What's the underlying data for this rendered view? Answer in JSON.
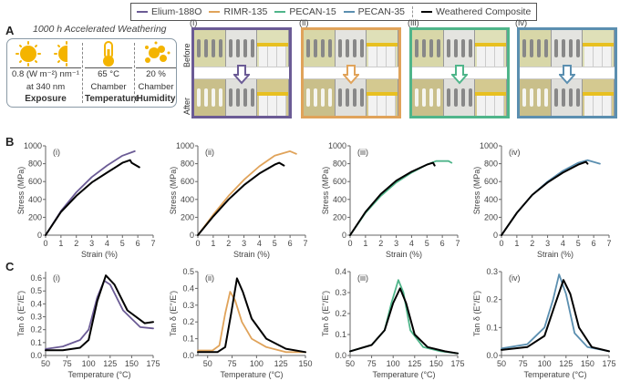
{
  "legend": {
    "items": [
      {
        "label": "Elium-188O",
        "color": "#6b5b95"
      },
      {
        "label": "RIMR-135",
        "color": "#e0a35a"
      },
      {
        "label": "PECAN-15",
        "color": "#4fb58a"
      },
      {
        "label": "PECAN-35",
        "color": "#5b8fb0"
      },
      {
        "label": "Weathered Composite",
        "color": "#000000"
      }
    ]
  },
  "panelA": {
    "letter": "A",
    "title": "1000 h Accelerated Weathering",
    "columns": [
      {
        "icon": "sun-icon",
        "value": "0.8 (W m⁻²) nm⁻¹",
        "sub": "at 340 nm",
        "caption": "Exposure"
      },
      {
        "icon": "thermometer-icon",
        "value": "65 °C",
        "sub": "Chamber",
        "caption": "Temperature"
      },
      {
        "icon": "humidity-droplets-icon",
        "value": "20 %",
        "sub": "Chamber",
        "caption": "Humidity"
      }
    ],
    "photos": [
      {
        "label": "(i)",
        "color": "#6b5b95"
      },
      {
        "label": "(ii)",
        "color": "#e0a35a"
      },
      {
        "label": "(iii)",
        "color": "#4fb58a"
      },
      {
        "label": "(iv)",
        "color": "#5b8fb0"
      }
    ],
    "row_labels": {
      "before": "Before",
      "after": "After"
    }
  },
  "panelB": {
    "letter": "B"
  },
  "panelC": {
    "letter": "C"
  },
  "chart_data": [
    {
      "type": "line",
      "panel": "B",
      "label": "(i)",
      "xlabel": "Strain (%)",
      "ylabel": "Stress (MPa)",
      "xlim": [
        0,
        7
      ],
      "ylim": [
        0,
        1000
      ],
      "xticks": [
        0,
        1,
        2,
        3,
        4,
        5,
        6,
        7
      ],
      "yticks": [
        0,
        200,
        400,
        600,
        800,
        1000
      ],
      "series": [
        {
          "name": "Elium-188O",
          "color": "#6b5b95",
          "x": [
            0,
            1,
            2,
            3,
            4,
            5,
            5.8
          ],
          "y": [
            0,
            270,
            480,
            650,
            780,
            890,
            940
          ]
        },
        {
          "name": "Weathered Composite",
          "color": "#000000",
          "x": [
            0,
            1,
            2,
            3,
            4,
            5,
            5.5,
            5.6,
            6.1
          ],
          "y": [
            0,
            260,
            440,
            590,
            700,
            810,
            840,
            810,
            760
          ]
        }
      ]
    },
    {
      "type": "line",
      "panel": "B",
      "label": "(ii)",
      "xlabel": "Strain (%)",
      "ylabel": "Stress (MPa)",
      "xlim": [
        0,
        7
      ],
      "ylim": [
        0,
        1000
      ],
      "xticks": [
        0,
        1,
        2,
        3,
        4,
        5,
        6,
        7
      ],
      "yticks": [
        0,
        200,
        400,
        600,
        800,
        1000
      ],
      "series": [
        {
          "name": "RIMR-135",
          "color": "#e0a35a",
          "x": [
            0,
            1,
            2,
            3,
            4,
            5,
            6,
            6.4
          ],
          "y": [
            0,
            230,
            440,
            620,
            770,
            890,
            940,
            910
          ]
        },
        {
          "name": "Weathered Composite",
          "color": "#000000",
          "x": [
            0,
            1,
            2,
            3,
            4,
            5,
            5.3,
            5.6
          ],
          "y": [
            0,
            210,
            400,
            560,
            690,
            790,
            810,
            780
          ]
        }
      ]
    },
    {
      "type": "line",
      "panel": "B",
      "label": "(iii)",
      "xlabel": "Strain (%)",
      "ylabel": "Stress (MPa)",
      "xlim": [
        0,
        7
      ],
      "ylim": [
        0,
        1000
      ],
      "xticks": [
        0,
        1,
        2,
        3,
        4,
        5,
        6,
        7
      ],
      "yticks": [
        0,
        200,
        400,
        600,
        800,
        1000
      ],
      "series": [
        {
          "name": "PECAN-15",
          "color": "#4fb58a",
          "x": [
            0,
            1,
            2,
            3,
            4,
            5,
            5.6,
            6.4,
            6.6
          ],
          "y": [
            0,
            250,
            440,
            590,
            700,
            790,
            830,
            830,
            810
          ]
        },
        {
          "name": "Weathered Composite",
          "color": "#000000",
          "x": [
            0,
            1,
            2,
            3,
            4,
            5,
            5.4,
            5.5
          ],
          "y": [
            0,
            260,
            460,
            610,
            710,
            790,
            810,
            780
          ]
        }
      ]
    },
    {
      "type": "line",
      "panel": "B",
      "label": "(iv)",
      "xlabel": "Strain (%)",
      "ylabel": "Stress (MPa)",
      "xlim": [
        0,
        7
      ],
      "ylim": [
        0,
        1000
      ],
      "xticks": [
        0,
        1,
        2,
        3,
        4,
        5,
        6,
        7
      ],
      "yticks": [
        0,
        200,
        400,
        600,
        800,
        1000
      ],
      "series": [
        {
          "name": "PECAN-35",
          "color": "#5b8fb0",
          "x": [
            0,
            1,
            2,
            3,
            4,
            5,
            5.6,
            6.4
          ],
          "y": [
            0,
            250,
            450,
            600,
            720,
            810,
            840,
            800
          ]
        },
        {
          "name": "Weathered Composite",
          "color": "#000000",
          "x": [
            0,
            1,
            2,
            3,
            4,
            5,
            5.5,
            5.6
          ],
          "y": [
            0,
            250,
            450,
            590,
            700,
            790,
            820,
            800
          ]
        }
      ]
    },
    {
      "type": "line",
      "panel": "C",
      "label": "(i)",
      "xlabel": "Temperature (°C)",
      "ylabel": "Tan δ (E''/E')",
      "xlim": [
        50,
        175
      ],
      "ylim": [
        0,
        0.65
      ],
      "xticks": [
        50,
        75,
        100,
        125,
        150,
        175
      ],
      "yticks": [
        0,
        0.1,
        0.2,
        0.3,
        0.4,
        0.5,
        0.6
      ],
      "series": [
        {
          "name": "Elium-188O",
          "color": "#6b5b95",
          "x": [
            50,
            70,
            90,
            100,
            110,
            118,
            125,
            140,
            160,
            175
          ],
          "y": [
            0.05,
            0.07,
            0.12,
            0.2,
            0.45,
            0.58,
            0.55,
            0.35,
            0.22,
            0.21
          ]
        },
        {
          "name": "Weathered Composite",
          "color": "#000000",
          "x": [
            50,
            70,
            90,
            100,
            110,
            120,
            130,
            145,
            165,
            175
          ],
          "y": [
            0.04,
            0.04,
            0.06,
            0.12,
            0.42,
            0.62,
            0.55,
            0.35,
            0.25,
            0.26
          ]
        }
      ]
    },
    {
      "type": "line",
      "panel": "C",
      "label": "(ii)",
      "xlabel": "Temperature (°C)",
      "ylabel": "Tan δ (E''/E')",
      "xlim": [
        40,
        150
      ],
      "ylim": [
        0,
        0.5
      ],
      "xticks": [
        50,
        75,
        100,
        125,
        150
      ],
      "yticks": [
        0,
        0.1,
        0.2,
        0.3,
        0.4,
        0.5
      ],
      "series": [
        {
          "name": "RIMR-135",
          "color": "#e0a35a",
          "x": [
            40,
            55,
            62,
            68,
            73,
            78,
            85,
            95,
            110,
            130,
            150
          ],
          "y": [
            0.03,
            0.03,
            0.06,
            0.25,
            0.38,
            0.33,
            0.2,
            0.1,
            0.05,
            0.02,
            0.02
          ]
        },
        {
          "name": "Weathered Composite",
          "color": "#000000",
          "x": [
            40,
            60,
            68,
            74,
            80,
            86,
            95,
            110,
            130,
            150
          ],
          "y": [
            0.02,
            0.02,
            0.05,
            0.25,
            0.46,
            0.38,
            0.22,
            0.1,
            0.04,
            0.02
          ]
        }
      ]
    },
    {
      "type": "line",
      "panel": "C",
      "label": "(iii)",
      "xlabel": "Temperature (°C)",
      "ylabel": "Tan δ (E''/E')",
      "xlim": [
        50,
        175
      ],
      "ylim": [
        0,
        0.4
      ],
      "xticks": [
        50,
        75,
        100,
        125,
        150,
        175
      ],
      "yticks": [
        0,
        0.1,
        0.2,
        0.3,
        0.4
      ],
      "series": [
        {
          "name": "PECAN-15",
          "color": "#4fb58a",
          "x": [
            50,
            75,
            90,
            98,
            106,
            112,
            120,
            135,
            155,
            175
          ],
          "y": [
            0.02,
            0.05,
            0.12,
            0.25,
            0.36,
            0.3,
            0.12,
            0.04,
            0.02,
            0.01
          ]
        },
        {
          "name": "Weathered Composite",
          "color": "#000000",
          "x": [
            50,
            75,
            90,
            100,
            108,
            115,
            125,
            140,
            160,
            175
          ],
          "y": [
            0.02,
            0.05,
            0.12,
            0.25,
            0.32,
            0.25,
            0.1,
            0.04,
            0.02,
            0.01
          ]
        }
      ]
    },
    {
      "type": "line",
      "panel": "C",
      "label": "(iv)",
      "xlabel": "Temperature (°C)",
      "ylabel": "Tan δ (E''/E')",
      "xlim": [
        50,
        175
      ],
      "ylim": [
        0,
        0.3
      ],
      "xticks": [
        50,
        75,
        100,
        125,
        150,
        175
      ],
      "yticks": [
        0,
        0.1,
        0.2,
        0.3
      ],
      "series": [
        {
          "name": "PECAN-35",
          "color": "#5b8fb0",
          "x": [
            50,
            80,
            100,
            110,
            117,
            125,
            135,
            150,
            175
          ],
          "y": [
            0.025,
            0.04,
            0.1,
            0.2,
            0.29,
            0.22,
            0.08,
            0.03,
            0.015
          ]
        },
        {
          "name": "Weathered Composite",
          "color": "#000000",
          "x": [
            50,
            80,
            100,
            112,
            122,
            130,
            140,
            155,
            175
          ],
          "y": [
            0.02,
            0.03,
            0.07,
            0.18,
            0.27,
            0.22,
            0.1,
            0.03,
            0.015
          ]
        }
      ]
    }
  ]
}
